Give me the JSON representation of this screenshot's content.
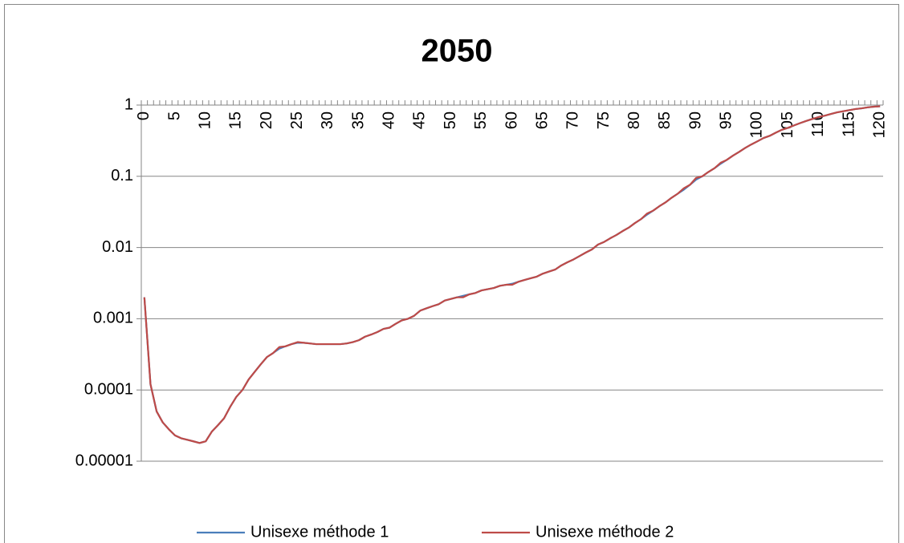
{
  "chart_data": {
    "type": "line",
    "title": "2050",
    "categories": [
      0,
      null,
      null,
      null,
      null,
      5,
      null,
      null,
      null,
      null,
      10,
      null,
      null,
      null,
      null,
      15,
      null,
      null,
      null,
      null,
      20,
      null,
      null,
      null,
      null,
      25,
      null,
      null,
      null,
      null,
      30,
      null,
      null,
      null,
      null,
      35,
      null,
      null,
      null,
      null,
      40,
      null,
      null,
      null,
      null,
      45,
      null,
      null,
      null,
      null,
      50,
      null,
      null,
      null,
      null,
      55,
      null,
      null,
      null,
      null,
      60,
      null,
      null,
      null,
      null,
      65,
      null,
      null,
      null,
      null,
      70,
      null,
      null,
      null,
      null,
      75,
      null,
      null,
      null,
      null,
      80,
      null,
      null,
      null,
      null,
      85,
      null,
      null,
      null,
      null,
      90,
      null,
      null,
      null,
      null,
      95,
      null,
      null,
      null,
      null,
      100,
      null,
      null,
      null,
      null,
      105,
      null,
      null,
      null,
      null,
      110,
      null,
      null,
      null,
      null,
      115,
      null,
      null,
      null,
      null,
      120
    ],
    "series": [
      {
        "name": "Unisexe méthode 1",
        "color": "#4a7ebb",
        "values": [
          0.002,
          0.00012,
          5e-05,
          3.5e-05,
          2.8e-05,
          2.3e-05,
          2.1e-05,
          2e-05,
          1.9e-05,
          1.8e-05,
          1.9e-05,
          2.6e-05,
          3.2e-05,
          4e-05,
          5.8e-05,
          8e-05,
          0.0001,
          0.00014,
          0.00018,
          0.00023,
          0.00029,
          0.00033,
          0.00038,
          0.00041,
          0.00044,
          0.00046,
          0.00046,
          0.00045,
          0.00044,
          0.00044,
          0.00044,
          0.00044,
          0.00044,
          0.00045,
          0.00047,
          0.0005,
          0.00056,
          0.0006,
          0.00065,
          0.00072,
          0.00075,
          0.00085,
          0.00095,
          0.001,
          0.0011,
          0.0013,
          0.0014,
          0.0015,
          0.0016,
          0.0018,
          0.0019,
          0.002,
          0.0021,
          0.0022,
          0.0023,
          0.0025,
          0.0026,
          0.0027,
          0.0029,
          0.003,
          0.0031,
          0.0033,
          0.0035,
          0.0037,
          0.0039,
          0.0043,
          0.0046,
          0.0049,
          0.0056,
          0.0062,
          0.0068,
          0.0076,
          0.0085,
          0.0094,
          0.011,
          0.012,
          0.0135,
          0.015,
          0.017,
          0.019,
          0.022,
          0.025,
          0.029,
          0.033,
          0.038,
          0.043,
          0.05,
          0.057,
          0.065,
          0.076,
          0.09,
          0.1,
          0.115,
          0.13,
          0.15,
          0.17,
          0.195,
          0.22,
          0.25,
          0.28,
          0.31,
          0.345,
          0.37,
          0.41,
          0.45,
          0.48,
          0.52,
          0.56,
          0.6,
          0.64,
          0.68,
          0.71,
          0.75,
          0.79,
          0.82,
          0.85,
          0.88,
          0.9,
          0.93,
          0.95,
          0.96
        ]
      },
      {
        "name": "Unisexe méthode 2",
        "color": "#be4b48",
        "values": [
          0.002,
          0.00012,
          5e-05,
          3.5e-05,
          2.8e-05,
          2.3e-05,
          2.1e-05,
          2e-05,
          1.9e-05,
          1.8e-05,
          1.9e-05,
          2.6e-05,
          3.2e-05,
          4e-05,
          5.8e-05,
          8e-05,
          0.0001,
          0.00014,
          0.00018,
          0.00023,
          0.00029,
          0.00033,
          0.0004,
          0.00041,
          0.00044,
          0.00047,
          0.00046,
          0.00045,
          0.00044,
          0.00044,
          0.00044,
          0.00044,
          0.00044,
          0.00045,
          0.00047,
          0.0005,
          0.00056,
          0.0006,
          0.00065,
          0.00072,
          0.00075,
          0.00085,
          0.00095,
          0.001,
          0.0011,
          0.0013,
          0.0014,
          0.0015,
          0.0016,
          0.0018,
          0.0019,
          0.002,
          0.002,
          0.0022,
          0.0023,
          0.0025,
          0.0026,
          0.0027,
          0.0029,
          0.003,
          0.003,
          0.0033,
          0.0035,
          0.0037,
          0.0039,
          0.0043,
          0.0046,
          0.0049,
          0.0056,
          0.0062,
          0.0068,
          0.0076,
          0.0085,
          0.0094,
          0.011,
          0.012,
          0.0135,
          0.015,
          0.017,
          0.019,
          0.022,
          0.025,
          0.03,
          0.033,
          0.038,
          0.043,
          0.05,
          0.057,
          0.068,
          0.076,
          0.095,
          0.1,
          0.115,
          0.13,
          0.155,
          0.17,
          0.195,
          0.22,
          0.25,
          0.28,
          0.31,
          0.345,
          0.37,
          0.41,
          0.45,
          0.48,
          0.52,
          0.56,
          0.6,
          0.64,
          0.68,
          0.71,
          0.75,
          0.79,
          0.82,
          0.85,
          0.88,
          0.9,
          0.93,
          0.95,
          0.96
        ]
      }
    ],
    "ylim": [
      1e-05,
      1
    ],
    "yticks": [
      1e-05,
      0.0001,
      0.001,
      0.01,
      0.1,
      1
    ],
    "log_y": true,
    "grid": true,
    "legend": "bottom"
  }
}
